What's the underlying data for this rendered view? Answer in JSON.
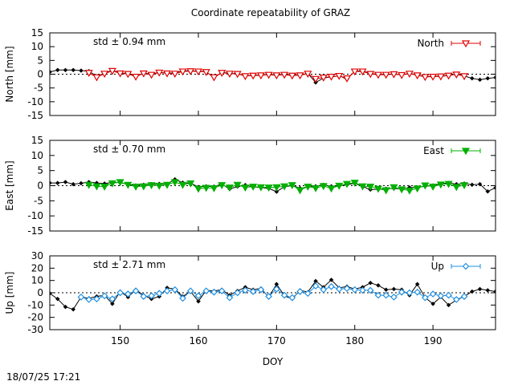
{
  "title": "Coordinate repeatability of GRAZ",
  "footer_timestamp": "18/07/25 17:21",
  "chart_data": [
    {
      "type": "line",
      "component": "North",
      "ylabel": "North [mm]",
      "xlabel": "",
      "xlim": [
        141,
        198
      ],
      "ylim": [
        -15,
        15
      ],
      "yticks": [
        -15,
        -10,
        -5,
        0,
        5,
        10,
        15
      ],
      "std_label": "std ± 0.94 mm",
      "legend": "North",
      "legend_position": "top-right",
      "color": "#e00000",
      "marker": "triangle-down-open",
      "reference": {
        "x": [
          141,
          142,
          143,
          144,
          145,
          146,
          147,
          148,
          149,
          150,
          151,
          152,
          153,
          154,
          155,
          156,
          157,
          158,
          159,
          160,
          161,
          162,
          163,
          164,
          165,
          166,
          167,
          168,
          169,
          170,
          171,
          172,
          173,
          174,
          175,
          176,
          177,
          178,
          179,
          180,
          181,
          182,
          183,
          184,
          185,
          186,
          187,
          188,
          189,
          190,
          191,
          192,
          193,
          194,
          195,
          196,
          197,
          198
        ],
        "y": [
          0.8,
          1.5,
          1.5,
          1.5,
          1.3,
          1.1,
          -0.8,
          0.3,
          1.4,
          0.4,
          0.3,
          -0.8,
          0.4,
          0.0,
          0.7,
          0.4,
          0.4,
          1.2,
          1.2,
          1.1,
          0.9,
          -1.3,
          0.7,
          0.3,
          0.2,
          -0.6,
          -0.4,
          -0.3,
          -0.1,
          -0.3,
          -0.1,
          -0.4,
          -0.3,
          0.3,
          -3.0,
          -1.4,
          -1.0,
          -0.6,
          -1.8,
          1.1,
          1.2,
          0.2,
          -0.1,
          -0.1,
          0.1,
          -0.2,
          0.3,
          -0.3,
          -0.9,
          -0.8,
          -0.7,
          -0.4,
          0.0,
          -0.6,
          -1.5,
          -2.0,
          -1.5,
          -1.2
        ]
      },
      "series": {
        "name": "North",
        "x": [
          146,
          147,
          148,
          149,
          150,
          151,
          152,
          153,
          154,
          155,
          156,
          157,
          158,
          159,
          160,
          161,
          162,
          163,
          164,
          165,
          166,
          167,
          168,
          169,
          170,
          171,
          172,
          173,
          174,
          175,
          176,
          177,
          178,
          179,
          180,
          181,
          182,
          183,
          184,
          185,
          186,
          187,
          188,
          189,
          190,
          191,
          192,
          193,
          194
        ],
        "y": [
          0.5,
          -1.1,
          0.2,
          1.2,
          0.3,
          0.1,
          -0.9,
          0.3,
          -0.2,
          0.6,
          0.3,
          0.2,
          1.0,
          1.1,
          1.0,
          0.8,
          -1.1,
          0.5,
          0.2,
          0.1,
          -0.7,
          -0.5,
          -0.4,
          -0.2,
          -0.4,
          -0.2,
          -0.5,
          -0.4,
          0.2,
          -1.7,
          -1.2,
          -0.9,
          -0.6,
          -1.5,
          1.0,
          1.0,
          0.1,
          -0.2,
          -0.2,
          0.0,
          -0.3,
          0.2,
          -0.4,
          -1.0,
          -0.9,
          -0.8,
          -0.5,
          -0.1,
          -0.7
        ]
      }
    },
    {
      "type": "line",
      "component": "East",
      "ylabel": "East [mm]",
      "xlabel": "",
      "xlim": [
        141,
        198
      ],
      "ylim": [
        -15,
        15
      ],
      "yticks": [
        -15,
        -10,
        -5,
        0,
        5,
        10,
        15
      ],
      "std_label": "std ± 0.70 mm",
      "legend": "East",
      "legend_position": "top-right",
      "color": "#00b000",
      "marker": "triangle-down-filled",
      "reference": {
        "x": [
          141,
          142,
          143,
          144,
          145,
          146,
          147,
          148,
          149,
          150,
          151,
          152,
          153,
          154,
          155,
          156,
          157,
          158,
          159,
          160,
          161,
          162,
          163,
          164,
          165,
          166,
          167,
          168,
          169,
          170,
          171,
          172,
          173,
          174,
          175,
          176,
          177,
          178,
          179,
          180,
          181,
          182,
          183,
          184,
          185,
          186,
          187,
          188,
          189,
          190,
          191,
          192,
          193,
          194,
          195,
          196,
          197,
          198
        ],
        "y": [
          0.9,
          0.9,
          1.2,
          0.5,
          0.8,
          1.2,
          0.9,
          0.7,
          1.1,
          1.0,
          0.4,
          0.1,
          0.3,
          0.5,
          0.6,
          0.6,
          2.1,
          1.0,
          0.8,
          -0.4,
          -0.2,
          -0.3,
          0.5,
          -1.1,
          -0.3,
          0.2,
          -0.4,
          -0.6,
          -0.9,
          -2.0,
          -0.3,
          0.0,
          -0.8,
          -0.5,
          -0.2,
          0.3,
          -0.2,
          0.0,
          0.3,
          0.8,
          -0.3,
          -1.3,
          -1.2,
          -1.0,
          -0.9,
          -1.1,
          -0.6,
          -0.6,
          -0.2,
          0.1,
          0.6,
          0.9,
          0.5,
          0.7,
          0.3,
          0.5,
          -1.9,
          -0.7
        ]
      },
      "series": {
        "name": "East",
        "x": [
          146,
          147,
          148,
          149,
          150,
          151,
          152,
          153,
          154,
          155,
          156,
          157,
          158,
          159,
          160,
          161,
          162,
          163,
          164,
          165,
          166,
          167,
          168,
          169,
          170,
          171,
          172,
          173,
          174,
          175,
          176,
          177,
          178,
          179,
          180,
          181,
          182,
          183,
          184,
          185,
          186,
          187,
          188,
          189,
          190,
          191,
          192,
          193,
          194
        ],
        "y": [
          0.3,
          -0.2,
          -0.3,
          0.8,
          1.2,
          0.3,
          -0.3,
          -0.2,
          0.2,
          0.0,
          0.3,
          1.2,
          0.3,
          0.8,
          -1.0,
          -0.7,
          -0.8,
          0.2,
          -0.6,
          0.3,
          -0.6,
          -0.3,
          -0.5,
          -0.6,
          -0.5,
          -0.2,
          0.2,
          -1.5,
          -0.3,
          -0.8,
          -0.1,
          -0.9,
          0.0,
          0.6,
          1.0,
          -0.2,
          -0.3,
          -1.0,
          -1.5,
          -0.5,
          -1.2,
          -1.6,
          -0.9,
          0.1,
          -0.3,
          0.4,
          0.6,
          -0.4,
          0.2
        ]
      }
    },
    {
      "type": "line",
      "component": "Up",
      "ylabel": "Up [mm]",
      "xlabel": "DOY",
      "xlim": [
        141,
        198
      ],
      "ylim": [
        -30,
        30
      ],
      "yticks": [
        -30,
        -20,
        -10,
        0,
        10,
        20,
        30
      ],
      "xticks": [
        150,
        160,
        170,
        180,
        190
      ],
      "std_label": "std ± 2.71 mm",
      "legend": "Up",
      "legend_position": "top-right",
      "color": "#2090e0",
      "marker": "diamond-open",
      "reference": {
        "x": [
          141,
          142,
          143,
          144,
          145,
          146,
          147,
          148,
          149,
          150,
          151,
          152,
          153,
          154,
          155,
          156,
          157,
          158,
          159,
          160,
          161,
          162,
          163,
          164,
          165,
          166,
          167,
          168,
          169,
          170,
          171,
          172,
          173,
          174,
          175,
          176,
          177,
          178,
          179,
          180,
          181,
          182,
          183,
          184,
          185,
          186,
          187,
          188,
          189,
          190,
          191,
          192,
          193,
          194,
          195,
          196,
          197,
          198
        ],
        "y": [
          -0.5,
          -5.0,
          -11.5,
          -13.5,
          -3.5,
          -4.5,
          -3.0,
          -2.0,
          -9.0,
          1.0,
          -3.5,
          2.5,
          -2.0,
          -5.0,
          -3.0,
          4.0,
          3.0,
          -3.0,
          1.0,
          -7.0,
          2.0,
          1.5,
          2.5,
          -2.0,
          1.5,
          4.5,
          2.5,
          3.5,
          -3.5,
          7.0,
          -2.5,
          -5.0,
          2.0,
          0.5,
          9.5,
          4.5,
          10.5,
          4.0,
          5.0,
          3.0,
          4.5,
          8.0,
          6.0,
          2.5,
          3.0,
          2.5,
          -2.0,
          7.0,
          -4.0,
          -9.0,
          -3.5,
          -10.0,
          -6.0,
          -3.0,
          1.0,
          3.0,
          2.0,
          1.0
        ]
      },
      "series": {
        "name": "Up",
        "x": [
          145,
          146,
          147,
          148,
          149,
          150,
          151,
          152,
          153,
          154,
          155,
          156,
          157,
          158,
          159,
          160,
          161,
          162,
          163,
          164,
          165,
          166,
          167,
          168,
          169,
          170,
          171,
          172,
          173,
          174,
          175,
          176,
          177,
          178,
          179,
          180,
          181,
          182,
          183,
          184,
          185,
          186,
          187,
          188,
          189,
          190,
          191,
          192,
          193,
          194
        ],
        "y": [
          -3.5,
          -5.5,
          -5.0,
          -2.5,
          -5.0,
          0.0,
          -1.0,
          1.5,
          -3.0,
          -2.5,
          -0.5,
          1.5,
          2.5,
          -4.5,
          1.5,
          -2.5,
          1.5,
          0.5,
          1.5,
          -4.0,
          0.0,
          2.0,
          1.0,
          2.5,
          -3.0,
          3.0,
          -2.0,
          -4.0,
          1.0,
          -0.5,
          5.5,
          2.5,
          5.0,
          3.0,
          3.5,
          2.5,
          2.0,
          2.0,
          -2.0,
          -2.0,
          -3.5,
          0.5,
          0.0,
          0.5,
          -4.0,
          -1.0,
          -2.5,
          -2.0,
          -5.5,
          -3.0
        ]
      }
    }
  ]
}
